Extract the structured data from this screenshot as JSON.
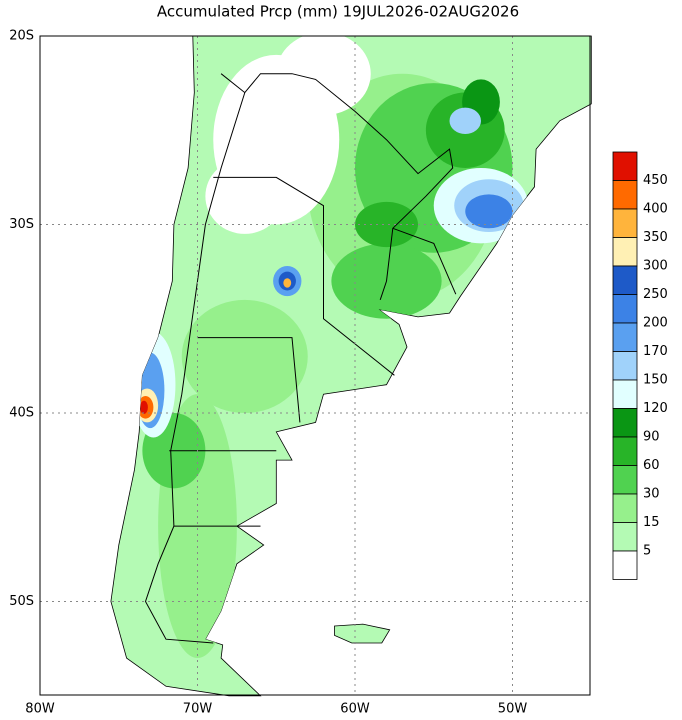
{
  "map": {
    "title": "Accumulated Prcp (mm) 19JUL2026-02AUG2026",
    "lat_labels": [
      "20S",
      "30S",
      "40S",
      "50S"
    ],
    "lon_labels": [
      "80W",
      "70W",
      "60W",
      "50W"
    ],
    "legend": {
      "labels": [
        450,
        400,
        350,
        300,
        250,
        200,
        170,
        150,
        120,
        90,
        60,
        30,
        15,
        5
      ],
      "colors": [
        "#e01000",
        "#ff6a00",
        "#ffb43c",
        "#fff0b4",
        "#1e5ac8",
        "#3c82e6",
        "#5aa0f0",
        "#a0d2fa",
        "#e1ffff",
        "#0a9614",
        "#28b428",
        "#50d250",
        "#96f08c",
        "#b4fab4",
        "#ffffff"
      ]
    }
  }
}
